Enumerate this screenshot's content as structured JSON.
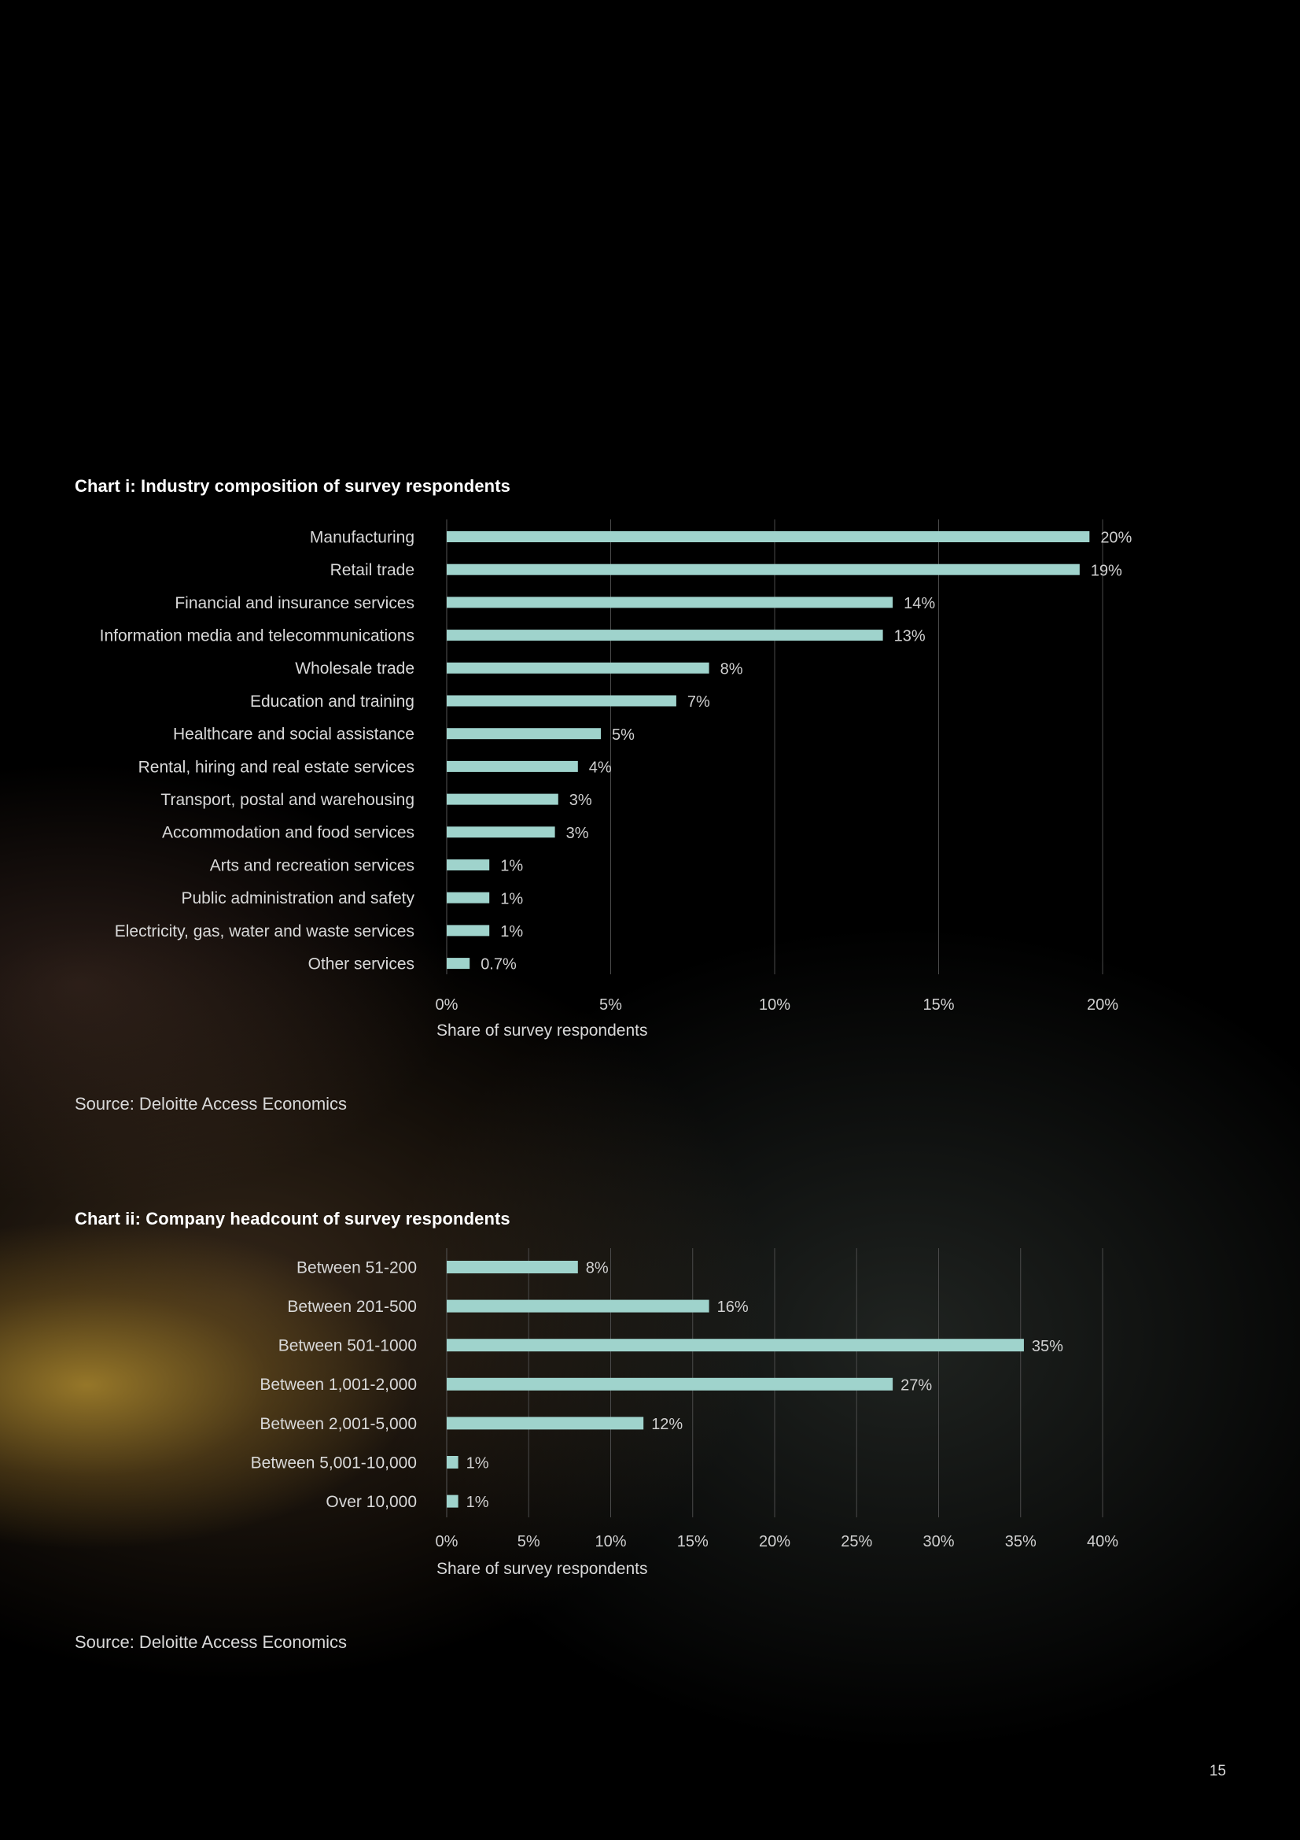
{
  "page_number": "15",
  "accent_color": "#9fd3cc",
  "chart_data": [
    {
      "type": "bar",
      "orientation": "horizontal",
      "title": "Chart i: Industry composition of survey respondents",
      "xlabel": "Share of survey respondents",
      "ylabel": "",
      "xlim": [
        0,
        20
      ],
      "ticks": [
        "0%",
        "5%",
        "10%",
        "15%",
        "20%"
      ],
      "grid": true,
      "categories": [
        "Manufacturing",
        "Retail trade",
        "Financial and insurance services",
        "Information media and telecommunications",
        "Wholesale trade",
        "Education and training",
        "Healthcare and social assistance",
        "Rental, hiring and real estate services",
        "Transport, postal and warehousing",
        "Accommodation and food services",
        "Arts and recreation services",
        "Public administration and safety",
        "Electricity, gas, water and waste services",
        "Other services"
      ],
      "values": [
        19.6,
        19.3,
        13.6,
        13.3,
        8.0,
        7.0,
        4.7,
        4.0,
        3.4,
        3.3,
        1.3,
        1.3,
        1.3,
        0.7
      ],
      "value_labels": [
        "20%",
        "19%",
        "14%",
        "13%",
        "8%",
        "7%",
        "5%",
        "4%",
        "3%",
        "3%",
        "1%",
        "1%",
        "1%",
        "0.7%"
      ],
      "source": "Source: Deloitte Access Economics"
    },
    {
      "type": "bar",
      "orientation": "horizontal",
      "title": "Chart ii: Company headcount of survey respondents",
      "xlabel": "Share of survey respondents",
      "ylabel": "",
      "xlim": [
        0,
        40
      ],
      "ticks": [
        "0%",
        "5%",
        "10%",
        "15%",
        "20%",
        "25%",
        "30%",
        "35%",
        "40%"
      ],
      "grid": true,
      "categories": [
        "Between 51-200",
        "Between 201-500",
        "Between 501-1000",
        "Between 1,001-2,000",
        "Between 2,001-5,000",
        "Between 5,001-10,000",
        "Over 10,000"
      ],
      "values": [
        8.0,
        16.0,
        35.2,
        27.2,
        12.0,
        0.7,
        0.7
      ],
      "value_labels": [
        "8%",
        "16%",
        "35%",
        "27%",
        "12%",
        "1%",
        "1%"
      ],
      "source": "Source: Deloitte Access Economics"
    }
  ]
}
